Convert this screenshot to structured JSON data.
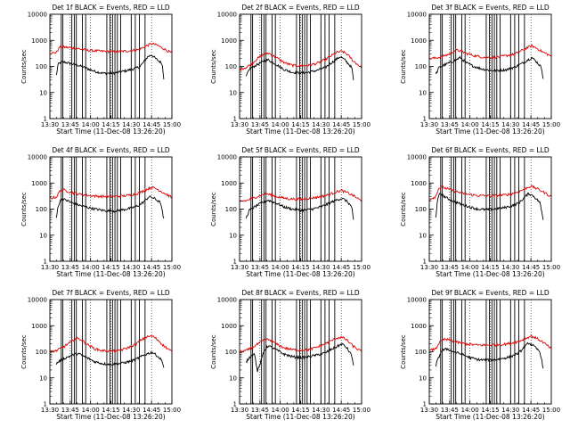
{
  "chart_data": {
    "type": "line",
    "grid": {
      "rows": 3,
      "cols": 3
    },
    "colors": {
      "events": "#000000",
      "lld": "#e00000"
    },
    "y_scale": "log",
    "ylim": [
      1,
      10000
    ],
    "y_ticks": [
      "1",
      "10",
      "100",
      "1000",
      "10000"
    ],
    "x_tick_labels": [
      "13:30",
      "13:45",
      "14:00",
      "14:15",
      "14:30",
      "14:45",
      "15:00"
    ],
    "xlabel": "Start Time (11-Dec-08 13:26:20)",
    "ylabel": "Counts/sec",
    "x_hours": {
      "start": 13.5,
      "end": 15.0
    },
    "events_start": 13.58,
    "events_end": 14.9,
    "vertical_markers": [
      13.64,
      13.66,
      13.77,
      13.8,
      13.825,
      13.9,
      13.94,
      14.2,
      14.24,
      14.27,
      14.3,
      14.33,
      14.37,
      14.5,
      14.55,
      14.6,
      14.67
    ],
    "panels": [
      {
        "title": "Det 1f BLACK = Events, RED = LLD",
        "series": [
          {
            "name": "Events",
            "x": [
              13.58,
              13.6,
              13.63,
              13.66,
              13.75,
              13.85,
              13.95,
              14.05,
              14.15,
              14.25,
              14.35,
              14.45,
              14.52,
              14.6,
              14.64,
              14.7,
              14.75,
              14.8,
              14.88,
              14.9
            ],
            "y": [
              45,
              120,
              140,
              150,
              130,
              110,
              85,
              65,
              55,
              55,
              60,
              70,
              80,
              95,
              130,
              230,
              280,
              200,
              130,
              35
            ]
          },
          {
            "name": "LLD",
            "x": [
              13.5,
              13.58,
              13.62,
              13.66,
              13.75,
              13.85,
              13.95,
              14.1,
              14.25,
              14.4,
              14.5,
              14.6,
              14.68,
              14.75,
              14.82,
              14.9,
              15.0
            ],
            "y": [
              320,
              340,
              550,
              560,
              520,
              480,
              420,
              390,
              370,
              380,
              400,
              450,
              600,
              750,
              650,
              480,
              320
            ]
          }
        ]
      },
      {
        "title": "Det 2f BLACK = Events, RED = LLD",
        "series": [
          {
            "name": "Events",
            "x": [
              13.58,
              13.62,
              13.7,
              13.78,
              13.85,
              13.95,
              14.05,
              14.15,
              14.25,
              14.35,
              14.45,
              14.55,
              14.62,
              14.68,
              14.74,
              14.8,
              14.88,
              14.9
            ],
            "y": [
              40,
              80,
              110,
              150,
              180,
              120,
              75,
              60,
              55,
              60,
              70,
              90,
              130,
              180,
              240,
              170,
              90,
              30
            ]
          },
          {
            "name": "LLD",
            "x": [
              13.5,
              13.58,
              13.65,
              13.72,
              13.8,
              13.86,
              13.95,
              14.05,
              14.15,
              14.25,
              14.35,
              14.45,
              14.55,
              14.62,
              14.7,
              14.76,
              14.82,
              14.9,
              15.0
            ],
            "y": [
              80,
              90,
              130,
              200,
              300,
              320,
              220,
              140,
              110,
              105,
              110,
              130,
              180,
              250,
              350,
              380,
              300,
              160,
              90
            ]
          }
        ]
      },
      {
        "title": "Det 3f BLACK = Events, RED = LLD",
        "series": [
          {
            "name": "Events",
            "x": [
              13.58,
              13.62,
              13.7,
              13.8,
              13.88,
              13.95,
              14.05,
              14.15,
              14.25,
              14.35,
              14.45,
              14.55,
              14.62,
              14.7,
              14.76,
              14.82,
              14.88,
              14.9
            ],
            "y": [
              50,
              90,
              120,
              160,
              220,
              140,
              100,
              80,
              70,
              70,
              75,
              95,
              120,
              170,
              220,
              150,
              90,
              35
            ]
          },
          {
            "name": "LLD",
            "x": [
              13.5,
              13.58,
              13.66,
              13.75,
              13.82,
              13.88,
              13.95,
              14.05,
              14.15,
              14.25,
              14.35,
              14.45,
              14.55,
              14.62,
              14.7,
              14.76,
              14.82,
              14.9,
              15.0
            ],
            "y": [
              200,
              210,
              240,
              300,
              420,
              400,
              320,
              260,
              230,
              220,
              230,
              260,
              300,
              380,
              520,
              620,
              500,
              350,
              250
            ]
          }
        ]
      },
      {
        "title": "Det 4f BLACK = Events, RED = LLD",
        "series": [
          {
            "name": "Events",
            "x": [
              13.58,
              13.6,
              13.64,
              13.7,
              13.8,
              13.9,
              14.0,
              14.1,
              14.2,
              14.3,
              14.4,
              14.5,
              14.6,
              14.66,
              14.72,
              14.78,
              14.86,
              14.9
            ],
            "y": [
              45,
              130,
              250,
              220,
              160,
              130,
              110,
              95,
              85,
              85,
              95,
              110,
              140,
              200,
              300,
              260,
              180,
              40
            ]
          },
          {
            "name": "LLD",
            "x": [
              13.5,
              13.58,
              13.62,
              13.66,
              13.75,
              13.85,
              13.95,
              14.1,
              14.25,
              14.4,
              14.5,
              14.6,
              14.68,
              14.75,
              14.82,
              14.9,
              15.0
            ],
            "y": [
              260,
              290,
              480,
              560,
              450,
              380,
              340,
              310,
              300,
              320,
              350,
              420,
              550,
              700,
              580,
              420,
              280
            ]
          }
        ]
      },
      {
        "title": "Det 5f BLACK = Events, RED = LLD",
        "series": [
          {
            "name": "Events",
            "x": [
              13.58,
              13.62,
              13.7,
              13.78,
              13.85,
              13.95,
              14.05,
              14.15,
              14.25,
              14.35,
              14.45,
              14.55,
              14.62,
              14.7,
              14.76,
              14.82,
              14.88,
              14.9
            ],
            "y": [
              45,
              90,
              130,
              180,
              220,
              170,
              120,
              100,
              90,
              95,
              110,
              140,
              180,
              230,
              260,
              200,
              120,
              35
            ]
          },
          {
            "name": "LLD",
            "x": [
              13.5,
              13.58,
              13.66,
              13.75,
              13.82,
              13.9,
              14.0,
              14.1,
              14.2,
              14.3,
              14.4,
              14.5,
              14.6,
              14.68,
              14.75,
              14.82,
              14.9,
              15.0
            ],
            "y": [
              200,
              210,
              260,
              330,
              390,
              340,
              280,
              250,
              240,
              250,
              270,
              300,
              360,
              450,
              520,
              430,
              330,
              200
            ]
          }
        ]
      },
      {
        "title": "Det 6f BLACK = Events, RED = LLD",
        "series": [
          {
            "name": "Events",
            "x": [
              13.58,
              13.6,
              13.63,
              13.7,
              13.8,
              13.9,
              14.0,
              14.1,
              14.2,
              14.3,
              14.4,
              14.5,
              14.6,
              14.66,
              14.72,
              14.78,
              14.86,
              14.9
            ],
            "y": [
              50,
              200,
              420,
              280,
              200,
              150,
              120,
              100,
              95,
              100,
              110,
              130,
              170,
              260,
              400,
              320,
              180,
              40
            ]
          },
          {
            "name": "LLD",
            "x": [
              13.5,
              13.58,
              13.61,
              13.65,
              13.75,
              13.85,
              13.95,
              14.1,
              14.25,
              14.4,
              14.5,
              14.6,
              14.68,
              14.75,
              14.82,
              14.9,
              15.0
            ],
            "y": [
              240,
              300,
              600,
              720,
              560,
              450,
              380,
              330,
              320,
              340,
              380,
              460,
              620,
              760,
              620,
              460,
              300
            ]
          }
        ]
      },
      {
        "title": "Det 7f BLACK = Events, RED = LLD",
        "series": [
          {
            "name": "Events",
            "x": [
              13.58,
              13.62,
              13.7,
              13.78,
              13.85,
              13.95,
              14.05,
              14.15,
              14.25,
              14.35,
              14.45,
              14.55,
              14.62,
              14.7,
              14.76,
              14.82,
              14.88,
              14.9
            ],
            "y": [
              35,
              45,
              60,
              75,
              85,
              60,
              42,
              35,
              33,
              35,
              40,
              50,
              65,
              85,
              95,
              70,
              45,
              25
            ]
          },
          {
            "name": "LLD",
            "x": [
              13.5,
              13.58,
              13.66,
              13.75,
              13.82,
              13.88,
              13.95,
              14.05,
              14.15,
              14.25,
              14.35,
              14.45,
              14.55,
              14.62,
              14.7,
              14.76,
              14.82,
              14.9,
              15.0
            ],
            "y": [
              100,
              110,
              150,
              230,
              330,
              300,
              200,
              130,
              110,
              105,
              110,
              140,
              190,
              280,
              380,
              400,
              300,
              170,
              100
            ]
          }
        ]
      },
      {
        "title": "Det 8f BLACK = Events, RED = LLD",
        "series": [
          {
            "name": "Events",
            "x": [
              13.58,
              13.62,
              13.68,
              13.72,
              13.76,
              13.8,
              13.85,
              13.95,
              14.05,
              14.15,
              14.25,
              14.35,
              14.45,
              14.55,
              14.62,
              14.7,
              14.76,
              14.82,
              14.88,
              14.9
            ],
            "y": [
              40,
              60,
              90,
              18,
              40,
              110,
              170,
              120,
              80,
              65,
              60,
              65,
              75,
              90,
              120,
              160,
              200,
              140,
              70,
              30
            ]
          },
          {
            "name": "LLD",
            "x": [
              13.5,
              13.58,
              13.66,
              13.75,
              13.82,
              13.88,
              13.95,
              14.05,
              14.15,
              14.25,
              14.35,
              14.45,
              14.55,
              14.62,
              14.7,
              14.76,
              14.82,
              14.9,
              15.0
            ],
            "y": [
              100,
              110,
              150,
              220,
              300,
              280,
              200,
              140,
              120,
              115,
              120,
              150,
              200,
              260,
              340,
              360,
              280,
              160,
              100
            ]
          }
        ]
      },
      {
        "title": "Det 9f BLACK = Events, RED = LLD",
        "series": [
          {
            "name": "Events",
            "x": [
              13.58,
              13.6,
              13.65,
              13.72,
              13.8,
              13.9,
              14.0,
              14.1,
              14.2,
              14.3,
              14.4,
              14.5,
              14.6,
              14.66,
              14.72,
              14.78,
              14.86,
              14.9
            ],
            "y": [
              30,
              45,
              110,
              130,
              100,
              80,
              60,
              50,
              48,
              50,
              55,
              65,
              90,
              140,
              220,
              170,
              100,
              25
            ]
          },
          {
            "name": "LLD",
            "x": [
              13.5,
              13.58,
              13.62,
              13.68,
              13.75,
              13.85,
              13.95,
              14.1,
              14.25,
              14.4,
              14.5,
              14.6,
              14.68,
              14.75,
              14.82,
              14.9,
              15.0
            ],
            "y": [
              110,
              130,
              220,
              300,
              280,
              230,
              200,
              180,
              180,
              190,
              210,
              250,
              320,
              400,
              330,
              230,
              130
            ]
          }
        ]
      }
    ]
  }
}
